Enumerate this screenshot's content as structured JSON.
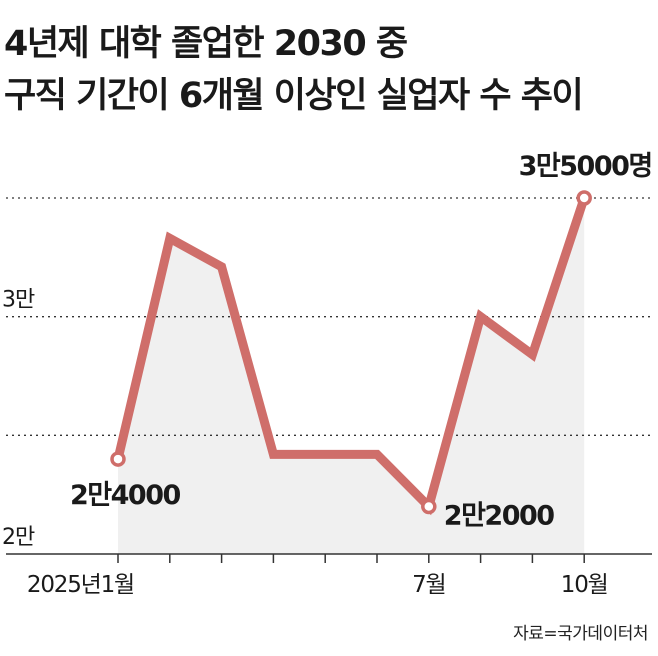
{
  "title_line1": "4년제 대학 졸업한 2030 중",
  "title_line2": "구직 기간이 6개월 이상인 실업자 수 추이",
  "source": "자료=국가데이터처",
  "colors": {
    "line": "#cf6e6a",
    "area": "#f0f0f0",
    "grid": "#333333",
    "text": "#1a1a1a"
  },
  "chart_data": {
    "type": "line",
    "x": [
      "2025-01",
      "2025-02",
      "2025-03",
      "2025-04",
      "2025-05",
      "2025-06",
      "2025-07",
      "2025-08",
      "2025-09",
      "2025-10"
    ],
    "xticks": [
      {
        "index": 0,
        "label": "2025년1월"
      },
      {
        "index": 6,
        "label": "7월"
      },
      {
        "index": 9,
        "label": "10월"
      }
    ],
    "yticks": [
      {
        "value": 20000,
        "label": "2만"
      },
      {
        "value": 30000,
        "label": "3만"
      }
    ],
    "ylim": [
      20000,
      35000
    ],
    "values": [
      24000,
      33300,
      32100,
      24200,
      24200,
      24200,
      22000,
      30000,
      28400,
      35000
    ],
    "data_labels": [
      {
        "index": 0,
        "label": "2만4000"
      },
      {
        "index": 6,
        "label": "2만2000"
      },
      {
        "index": 9,
        "label": "3만5000명"
      }
    ],
    "gridlines": [
      25000,
      30000,
      35000
    ],
    "grid_style": "dotted"
  }
}
